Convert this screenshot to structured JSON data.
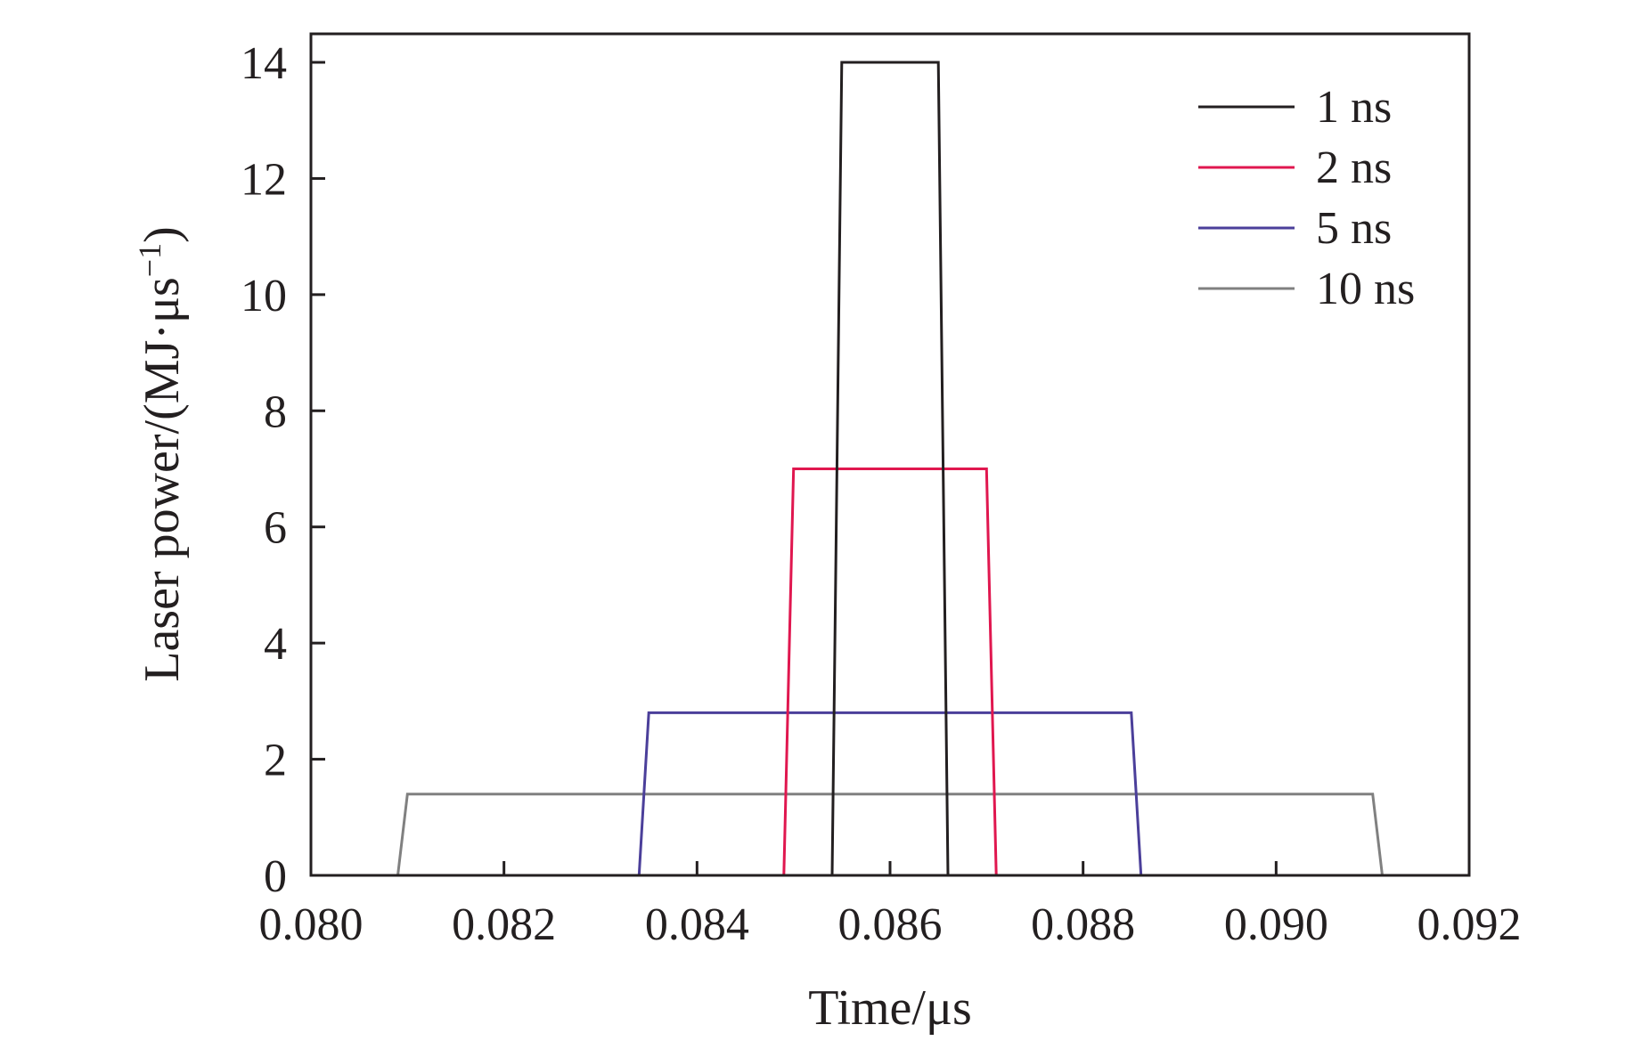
{
  "chart_data": {
    "type": "line",
    "title": "",
    "xlabel": "Time/μs",
    "ylabel": "Laser power/(MJ·μs",
    "ylabel_superscript": "−1",
    "ylabel_close": ")",
    "xlim": [
      0.08,
      0.092
    ],
    "ylim": [
      0,
      14.5
    ],
    "x_ticks": [
      {
        "value": 0.08,
        "label": "0.080"
      },
      {
        "value": 0.082,
        "label": "0.082"
      },
      {
        "value": 0.084,
        "label": "0.084"
      },
      {
        "value": 0.086,
        "label": "0.086"
      },
      {
        "value": 0.088,
        "label": "0.088"
      },
      {
        "value": 0.09,
        "label": "0.090"
      },
      {
        "value": 0.092,
        "label": "0.092"
      }
    ],
    "y_ticks": [
      {
        "value": 0,
        "label": "0"
      },
      {
        "value": 2,
        "label": "2"
      },
      {
        "value": 4,
        "label": "4"
      },
      {
        "value": 6,
        "label": "6"
      },
      {
        "value": 8,
        "label": "8"
      },
      {
        "value": 10,
        "label": "10"
      },
      {
        "value": 12,
        "label": "12"
      },
      {
        "value": 14,
        "label": "14"
      }
    ],
    "grid": false,
    "legend_position": "top-right",
    "series": [
      {
        "name": "1 ns",
        "color": "#231f20",
        "x": [
          0.0854,
          0.0855,
          0.0865,
          0.0866
        ],
        "y": [
          0,
          14,
          14,
          0
        ]
      },
      {
        "name": "2 ns",
        "color": "#e0174f",
        "x": [
          0.0849,
          0.085,
          0.087,
          0.0871
        ],
        "y": [
          0,
          7,
          7,
          0
        ]
      },
      {
        "name": "5 ns",
        "color": "#4b3f9a",
        "x": [
          0.0834,
          0.0835,
          0.0885,
          0.0886
        ],
        "y": [
          0,
          2.8,
          2.8,
          0
        ]
      },
      {
        "name": "10 ns",
        "color": "#808080",
        "x": [
          0.0809,
          0.081,
          0.091,
          0.0911
        ],
        "y": [
          0,
          1.4,
          1.4,
          0
        ]
      }
    ],
    "axis_color": "#231f20"
  }
}
